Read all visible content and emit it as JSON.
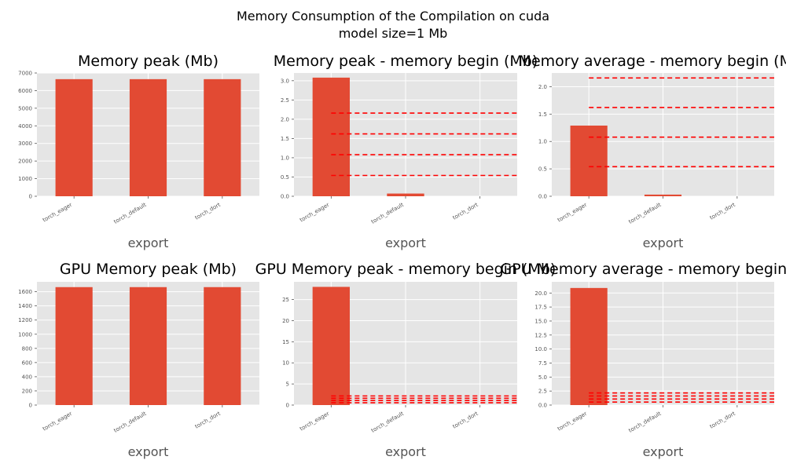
{
  "figure": {
    "title_line1": "Memory Consumption of the Compilation on cuda",
    "title_line2": "model size=1 Mb"
  },
  "colors": {
    "bar": "#e24a33",
    "ref_line": "#ff0000",
    "panel_bg": "#e5e5e5",
    "grid": "#ffffff",
    "axis_label": "#555555"
  },
  "chart_data": [
    {
      "type": "bar",
      "title": "Memory peak (Mb)",
      "xlabel": "export",
      "categories": [
        "torch_eager",
        "torch_default",
        "torch_dort"
      ],
      "values": [
        6650,
        6650,
        6650
      ],
      "ylim": [
        0,
        7000
      ],
      "yticks": [
        0,
        1000,
        2000,
        3000,
        4000,
        5000,
        6000,
        7000
      ],
      "ytick_labels": [
        "0",
        "1000",
        "2000",
        "3000",
        "4000",
        "5000",
        "6000",
        "7000"
      ],
      "hlines": [],
      "grid": true
    },
    {
      "type": "bar",
      "title": "Memory peak - memory begin (Mb)",
      "xlabel": "export",
      "categories": [
        "torch_eager",
        "torch_default",
        "torch_dort"
      ],
      "values": [
        3.08,
        0.07,
        0
      ],
      "ylim": [
        0,
        3.2
      ],
      "yticks": [
        0,
        0.5,
        1.0,
        1.5,
        2.0,
        2.5,
        3.0
      ],
      "ytick_labels": [
        "0.0",
        "0.5",
        "1.0",
        "1.5",
        "2.0",
        "2.5",
        "3.0"
      ],
      "hlines": [
        0.54,
        1.08,
        1.62,
        2.16
      ],
      "grid": true
    },
    {
      "type": "bar",
      "title": "Memory average - memory begin (Mb)",
      "xlabel": "export",
      "categories": [
        "torch_eager",
        "torch_default",
        "torch_dort"
      ],
      "values": [
        1.29,
        0.03,
        0
      ],
      "ylim": [
        0,
        2.25
      ],
      "yticks": [
        0,
        0.5,
        1.0,
        1.5,
        2.0
      ],
      "ytick_labels": [
        "0.0",
        "0.5",
        "1.0",
        "1.5",
        "2.0"
      ],
      "hlines": [
        0.54,
        1.08,
        1.62,
        2.16
      ],
      "grid": true
    },
    {
      "type": "bar",
      "title": "GPU Memory peak (Mb)",
      "xlabel": "export",
      "categories": [
        "torch_eager",
        "torch_default",
        "torch_dort"
      ],
      "values": [
        1665,
        1665,
        1665
      ],
      "ylim": [
        0,
        1740
      ],
      "yticks": [
        0,
        200,
        400,
        600,
        800,
        1000,
        1200,
        1400,
        1600
      ],
      "ytick_labels": [
        "0",
        "200",
        "400",
        "600",
        "800",
        "1000",
        "1200",
        "1400",
        "1600"
      ],
      "hlines": [],
      "grid": true
    },
    {
      "type": "bar",
      "title": "GPU Memory peak - memory begin (Mb)",
      "xlabel": "export",
      "categories": [
        "torch_eager",
        "torch_default",
        "torch_dort"
      ],
      "values": [
        28,
        0,
        0
      ],
      "ylim": [
        0,
        29.2
      ],
      "yticks": [
        0,
        5,
        10,
        15,
        20,
        25
      ],
      "ytick_labels": [
        "0",
        "5",
        "10",
        "15",
        "20",
        "25"
      ],
      "hlines": [
        0.54,
        1.08,
        1.62,
        2.16
      ],
      "grid": true
    },
    {
      "type": "bar",
      "title": "GPU Memory average - memory begin (Mb)",
      "xlabel": "export",
      "categories": [
        "torch_eager",
        "torch_default",
        "torch_dort"
      ],
      "values": [
        20.9,
        0,
        0
      ],
      "ylim": [
        0,
        22
      ],
      "yticks": [
        0,
        2.5,
        5.0,
        7.5,
        10.0,
        12.5,
        15.0,
        17.5,
        20.0
      ],
      "ytick_labels": [
        "0.0",
        "2.5",
        "5.0",
        "7.5",
        "10.0",
        "12.5",
        "15.0",
        "17.5",
        "20.0"
      ],
      "hlines": [
        0.54,
        1.08,
        1.62,
        2.16
      ],
      "grid": true
    }
  ]
}
